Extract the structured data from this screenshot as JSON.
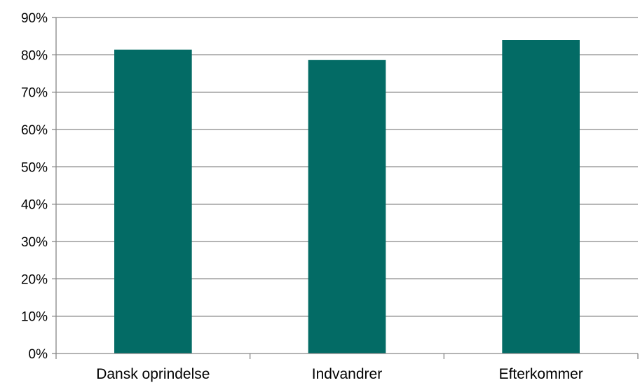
{
  "chart_data": {
    "type": "bar",
    "categories": [
      "Dansk oprindelse",
      "Indvandrer",
      "Efterkommer"
    ],
    "values": [
      81.4,
      78.6,
      84.0
    ],
    "ylim": [
      0,
      90
    ],
    "yticks": [
      0,
      10,
      20,
      30,
      40,
      50,
      60,
      70,
      80,
      90
    ],
    "ytick_labels": [
      "0%",
      "10%",
      "20%",
      "30%",
      "40%",
      "50%",
      "60%",
      "70%",
      "80%",
      "90%"
    ],
    "y_unit": "%",
    "grid": true,
    "legend": "none",
    "colors": {
      "bar": "#036B65",
      "grid": "#868686",
      "axis": "#868686"
    }
  }
}
